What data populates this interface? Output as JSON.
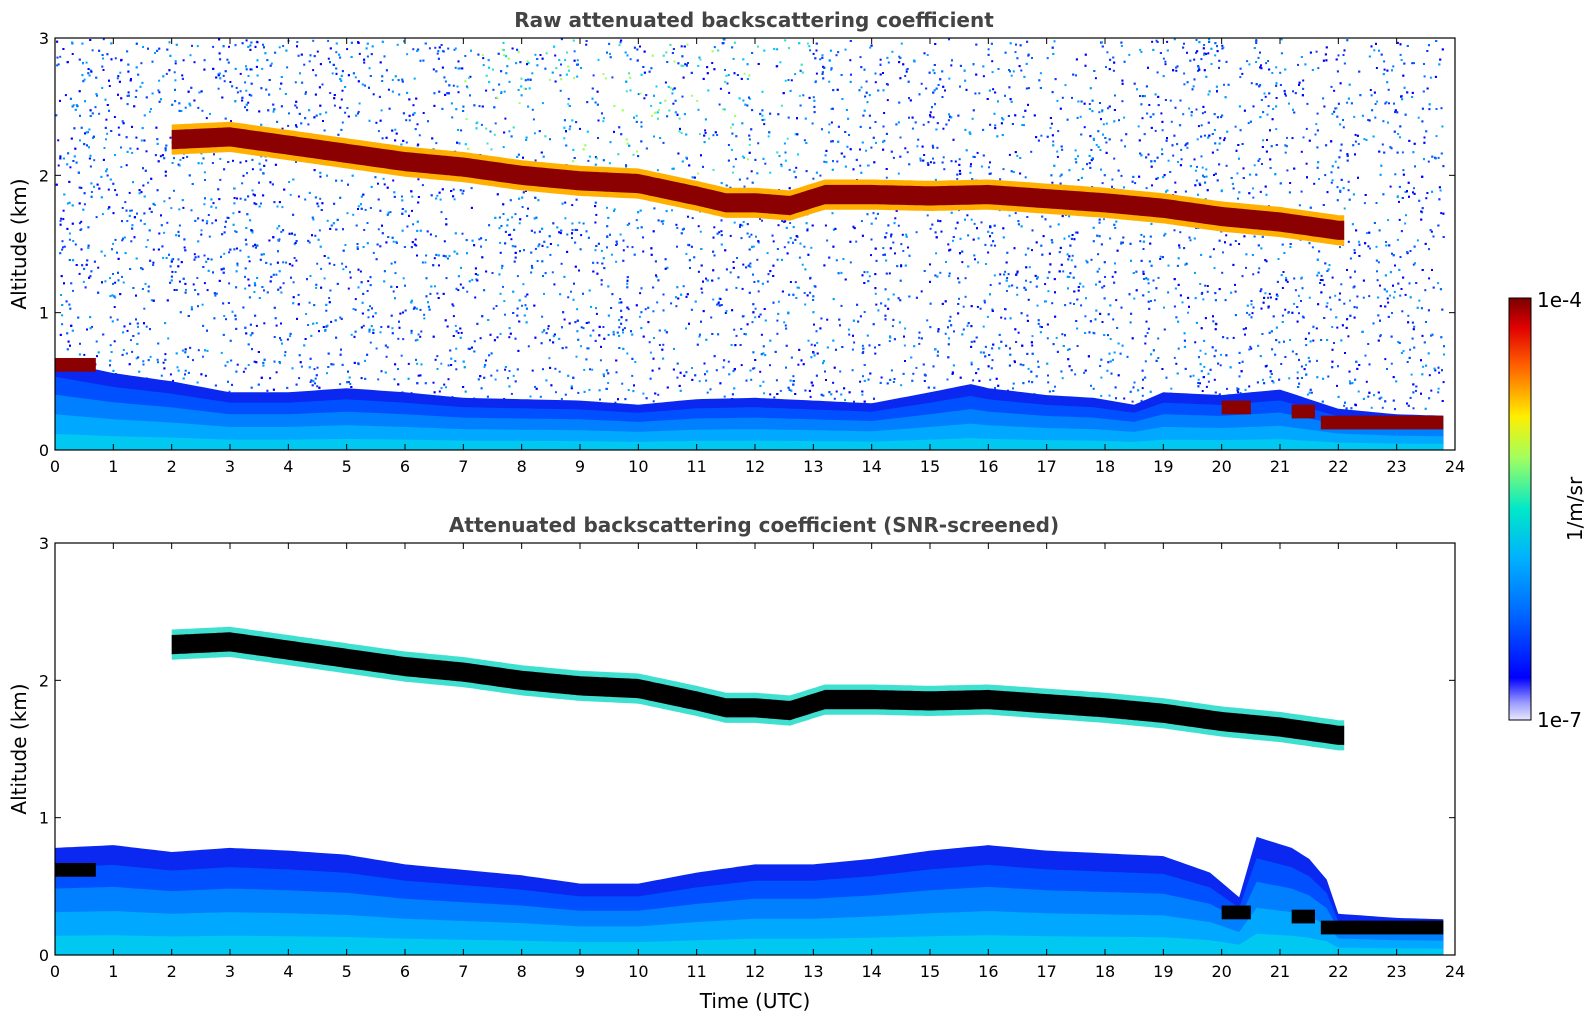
{
  "chart_data": [
    {
      "type": "heatmap",
      "title": "Raw attenuated backscattering coefficient",
      "xlabel": "",
      "ylabel": "Altitude (km)",
      "xlim": [
        0,
        24
      ],
      "ylim": [
        0,
        3
      ],
      "x_ticks": [
        "0",
        "1",
        "2",
        "3",
        "4",
        "5",
        "6",
        "7",
        "8",
        "9",
        "10",
        "11",
        "12",
        "13",
        "14",
        "15",
        "16",
        "17",
        "18",
        "19",
        "20",
        "21",
        "22",
        "23",
        "24"
      ],
      "y_ticks": [
        "0",
        "1",
        "2",
        "3"
      ],
      "data_end_time": 23.8,
      "colorscale": "jet",
      "background_noise": true,
      "features": {
        "cloud_layer": {
          "start": 2.0,
          "end": 22.1,
          "altitude_km": [
            [
              2.0,
              2.26
            ],
            [
              3.0,
              2.28
            ],
            [
              4.0,
              2.22
            ],
            [
              5.0,
              2.16
            ],
            [
              6.0,
              2.1
            ],
            [
              7.0,
              2.06
            ],
            [
              8.0,
              2.0
            ],
            [
              9.0,
              1.96
            ],
            [
              10.0,
              1.94
            ],
            [
              11.0,
              1.85
            ],
            [
              11.5,
              1.8
            ],
            [
              12.0,
              1.8
            ],
            [
              12.6,
              1.78
            ],
            [
              13.2,
              1.86
            ],
            [
              14.0,
              1.86
            ],
            [
              15.0,
              1.85
            ],
            [
              16.0,
              1.86
            ],
            [
              17.0,
              1.83
            ],
            [
              18.0,
              1.8
            ],
            [
              19.0,
              1.76
            ],
            [
              20.0,
              1.7
            ],
            [
              21.0,
              1.66
            ],
            [
              22.0,
              1.6
            ]
          ]
        },
        "boundary_layer_top_km": [
          [
            0,
            0.65
          ],
          [
            1,
            0.56
          ],
          [
            2,
            0.5
          ],
          [
            3,
            0.42
          ],
          [
            4,
            0.42
          ],
          [
            5,
            0.45
          ],
          [
            6,
            0.42
          ],
          [
            7,
            0.38
          ],
          [
            8,
            0.37
          ],
          [
            9,
            0.36
          ],
          [
            10,
            0.33
          ],
          [
            11,
            0.37
          ],
          [
            12,
            0.38
          ],
          [
            13,
            0.36
          ],
          [
            14,
            0.34
          ],
          [
            15,
            0.42
          ],
          [
            15.7,
            0.48
          ],
          [
            16,
            0.45
          ],
          [
            17,
            0.4
          ],
          [
            17.8,
            0.38
          ],
          [
            18.5,
            0.33
          ],
          [
            19,
            0.42
          ],
          [
            20,
            0.4
          ],
          [
            21,
            0.44
          ],
          [
            22,
            0.3
          ],
          [
            23,
            0.26
          ],
          [
            23.8,
            0.25
          ]
        ],
        "low_cloud_segments": [
          {
            "t0": 0.0,
            "t1": 0.7,
            "alt_km": 0.62
          },
          {
            "t0": 20.0,
            "t1": 20.5,
            "alt_km": 0.31
          },
          {
            "t0": 21.2,
            "t1": 21.6,
            "alt_km": 0.28
          },
          {
            "t0": 21.7,
            "t1": 23.8,
            "alt_km": 0.2
          }
        ]
      }
    },
    {
      "type": "heatmap",
      "title": "Attenuated backscattering coefficient (SNR-screened)",
      "xlabel": "Time (UTC)",
      "ylabel": "Altitude (km)",
      "xlim": [
        0,
        24
      ],
      "ylim": [
        0,
        3
      ],
      "x_ticks": [
        "0",
        "1",
        "2",
        "3",
        "4",
        "5",
        "6",
        "7",
        "8",
        "9",
        "10",
        "11",
        "12",
        "13",
        "14",
        "15",
        "16",
        "17",
        "18",
        "19",
        "20",
        "21",
        "22",
        "23",
        "24"
      ],
      "y_ticks": [
        "0",
        "1",
        "2",
        "3"
      ],
      "data_end_time": 23.8,
      "colorscale": "jet",
      "background_noise": false,
      "features": {
        "cloud_layer": {
          "start": 2.0,
          "end": 22.1,
          "altitude_km": [
            [
              2.0,
              2.26
            ],
            [
              3.0,
              2.28
            ],
            [
              4.0,
              2.22
            ],
            [
              5.0,
              2.16
            ],
            [
              6.0,
              2.1
            ],
            [
              7.0,
              2.06
            ],
            [
              8.0,
              2.0
            ],
            [
              9.0,
              1.96
            ],
            [
              10.0,
              1.94
            ],
            [
              11.0,
              1.85
            ],
            [
              11.5,
              1.8
            ],
            [
              12.0,
              1.8
            ],
            [
              12.6,
              1.78
            ],
            [
              13.2,
              1.86
            ],
            [
              14.0,
              1.86
            ],
            [
              15.0,
              1.85
            ],
            [
              16.0,
              1.86
            ],
            [
              17.0,
              1.83
            ],
            [
              18.0,
              1.8
            ],
            [
              19.0,
              1.76
            ],
            [
              20.0,
              1.7
            ],
            [
              21.0,
              1.66
            ],
            [
              22.0,
              1.6
            ]
          ]
        },
        "boundary_layer_top_km": [
          [
            0,
            0.78
          ],
          [
            1,
            0.8
          ],
          [
            2,
            0.75
          ],
          [
            3,
            0.78
          ],
          [
            4,
            0.76
          ],
          [
            5,
            0.73
          ],
          [
            6,
            0.66
          ],
          [
            7,
            0.62
          ],
          [
            8,
            0.58
          ],
          [
            9,
            0.52
          ],
          [
            10,
            0.52
          ],
          [
            11,
            0.6
          ],
          [
            12,
            0.66
          ],
          [
            13,
            0.66
          ],
          [
            14,
            0.7
          ],
          [
            15,
            0.76
          ],
          [
            16,
            0.8
          ],
          [
            17,
            0.76
          ],
          [
            18,
            0.74
          ],
          [
            19,
            0.72
          ],
          [
            19.8,
            0.6
          ],
          [
            20.3,
            0.42
          ],
          [
            20.6,
            0.86
          ],
          [
            21.2,
            0.78
          ],
          [
            21.5,
            0.7
          ],
          [
            21.8,
            0.55
          ],
          [
            22.0,
            0.3
          ],
          [
            23.0,
            0.27
          ],
          [
            23.8,
            0.26
          ]
        ],
        "low_cloud_segments": [
          {
            "t0": 0.0,
            "t1": 0.7,
            "alt_km": 0.62
          },
          {
            "t0": 20.0,
            "t1": 20.5,
            "alt_km": 0.31
          },
          {
            "t0": 21.2,
            "t1": 21.6,
            "alt_km": 0.28
          },
          {
            "t0": 21.7,
            "t1": 23.8,
            "alt_km": 0.2
          }
        ]
      }
    }
  ],
  "colorbar": {
    "max_label": "1e-4",
    "min_label": "1e-7",
    "unit_label": "1/m/sr"
  }
}
